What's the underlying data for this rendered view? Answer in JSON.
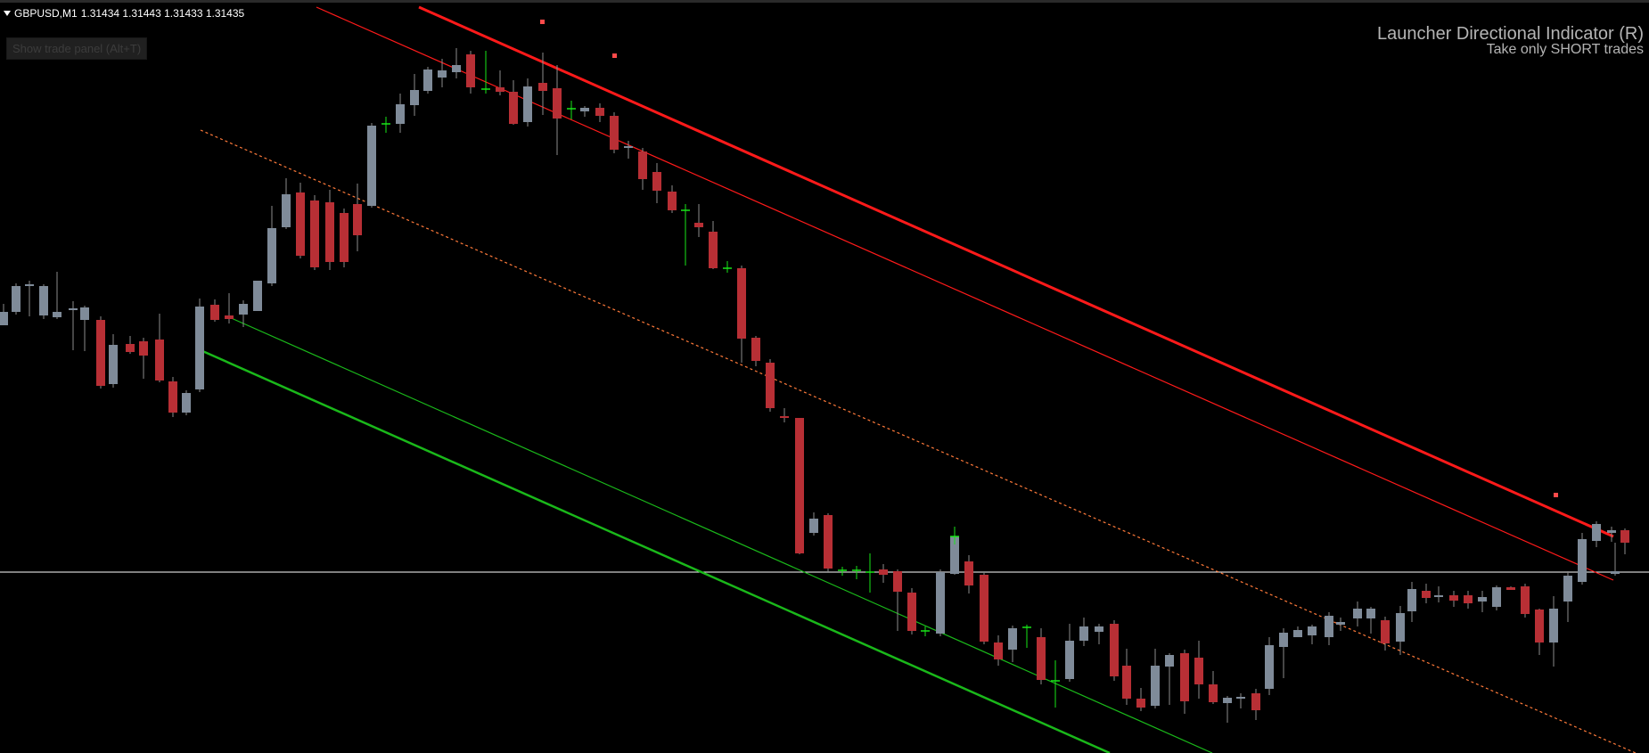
{
  "header": {
    "symbol": "GBPUSD,M1",
    "prices": "1.31434 1.31443 1.31433 1.31435",
    "trade_panel_label": "Show trade panel (Alt+T)"
  },
  "indicator": {
    "title": "Launcher Directional Indicator (R)",
    "subtitle": "Take only SHORT trades"
  },
  "colors": {
    "background": "#000000",
    "bull_candle": "#7f8b99",
    "bear_candle": "#b82f35",
    "doji": "#19e619",
    "wick": "#8c8c8c",
    "upper_channel": "#ff1a1a",
    "lower_channel": "#1ab81a",
    "mid_dotted": "#ff7a3a",
    "current_price_line": "#ffffff"
  }
}
